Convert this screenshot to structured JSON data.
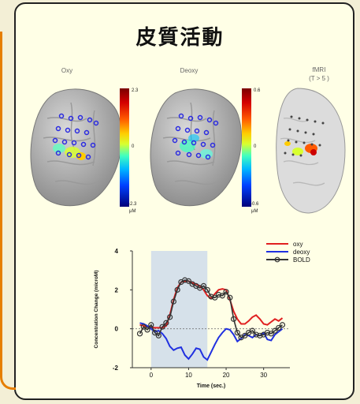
{
  "title": "皮質活動",
  "panels": [
    {
      "label": "Oxy",
      "cbar_max": "2.3",
      "cbar_mid": "0",
      "cbar_min": "-2.3",
      "unit": "μM"
    },
    {
      "label": "Deoxy",
      "cbar_max": "0.6",
      "cbar_mid": "0",
      "cbar_min": "-0.6",
      "unit": "μM"
    },
    {
      "label_line1": "fMRI",
      "label_line2": "(T > 5 )"
    }
  ],
  "chart_data": {
    "type": "line",
    "xlabel": "Time (sec.)",
    "ylabel": "Concentration Change (microM)",
    "xlim": [
      -5,
      37
    ],
    "ylim": [
      -2,
      4
    ],
    "xticks": [
      0,
      10,
      20,
      30
    ],
    "yticks": [
      -2,
      0,
      2,
      4
    ],
    "shaded_interval": [
      0,
      15
    ],
    "legend_position": "top-right",
    "series": [
      {
        "name": "oxy",
        "color": "#e02020",
        "x": [
          -3,
          -1,
          1,
          2,
          3,
          4,
          5,
          6,
          7,
          8,
          9,
          10,
          11,
          12,
          13,
          14,
          15,
          16,
          17,
          18,
          19,
          20,
          21,
          22,
          23,
          24,
          25,
          26,
          27,
          28,
          29,
          30,
          31,
          32,
          33,
          34,
          35
        ],
        "y": [
          0.2,
          0.1,
          0.05,
          0.05,
          0.05,
          0.15,
          0.7,
          1.5,
          2.1,
          2.4,
          2.45,
          2.45,
          2.35,
          2.3,
          2.2,
          2.0,
          1.7,
          1.55,
          1.8,
          2.0,
          2.05,
          2.0,
          1.5,
          0.9,
          0.5,
          0.25,
          0.25,
          0.4,
          0.6,
          0.7,
          0.5,
          0.25,
          0.2,
          0.35,
          0.5,
          0.4,
          0.55
        ]
      },
      {
        "name": "deoxy",
        "color": "#2030e0",
        "x": [
          -3,
          -2,
          -1,
          0,
          1,
          2,
          3,
          4,
          5,
          6,
          7,
          8,
          9,
          10,
          11,
          12,
          13,
          14,
          15,
          16,
          17,
          18,
          19,
          20,
          21,
          22,
          23,
          24,
          25,
          26,
          27,
          28,
          29,
          30,
          31,
          32,
          33,
          34,
          35
        ],
        "y": [
          0.3,
          0.25,
          0.15,
          0.0,
          -0.15,
          -0.1,
          -0.25,
          -0.5,
          -0.9,
          -1.1,
          -1.0,
          -0.95,
          -1.35,
          -1.55,
          -1.3,
          -1.0,
          -1.05,
          -1.45,
          -1.6,
          -1.2,
          -0.8,
          -0.45,
          -0.2,
          0.0,
          -0.05,
          -0.3,
          -0.65,
          -0.5,
          -0.3,
          -0.35,
          -0.45,
          -0.3,
          -0.35,
          -0.2,
          -0.55,
          -0.6,
          -0.3,
          -0.15,
          0.0
        ]
      },
      {
        "name": "BOLD",
        "color": "#333333",
        "marker": "circle",
        "x": [
          -3,
          -2,
          -1,
          0,
          1,
          2,
          3,
          4,
          5,
          6,
          7,
          8,
          9,
          10,
          11,
          12,
          13,
          14,
          15,
          16,
          17,
          18,
          19,
          20,
          21,
          22,
          23,
          24,
          25,
          26,
          27,
          28,
          29,
          30,
          31,
          32,
          33,
          34,
          35
        ],
        "y": [
          -0.25,
          0.1,
          -0.05,
          0.2,
          -0.2,
          -0.35,
          0.1,
          0.3,
          0.6,
          1.4,
          2.0,
          2.4,
          2.5,
          2.45,
          2.3,
          2.2,
          2.1,
          2.2,
          2.0,
          1.65,
          1.6,
          1.75,
          1.7,
          1.9,
          1.6,
          0.5,
          -0.2,
          -0.45,
          -0.35,
          -0.2,
          -0.1,
          -0.3,
          -0.35,
          -0.3,
          -0.2,
          -0.25,
          -0.1,
          0.05,
          0.2
        ]
      }
    ]
  }
}
